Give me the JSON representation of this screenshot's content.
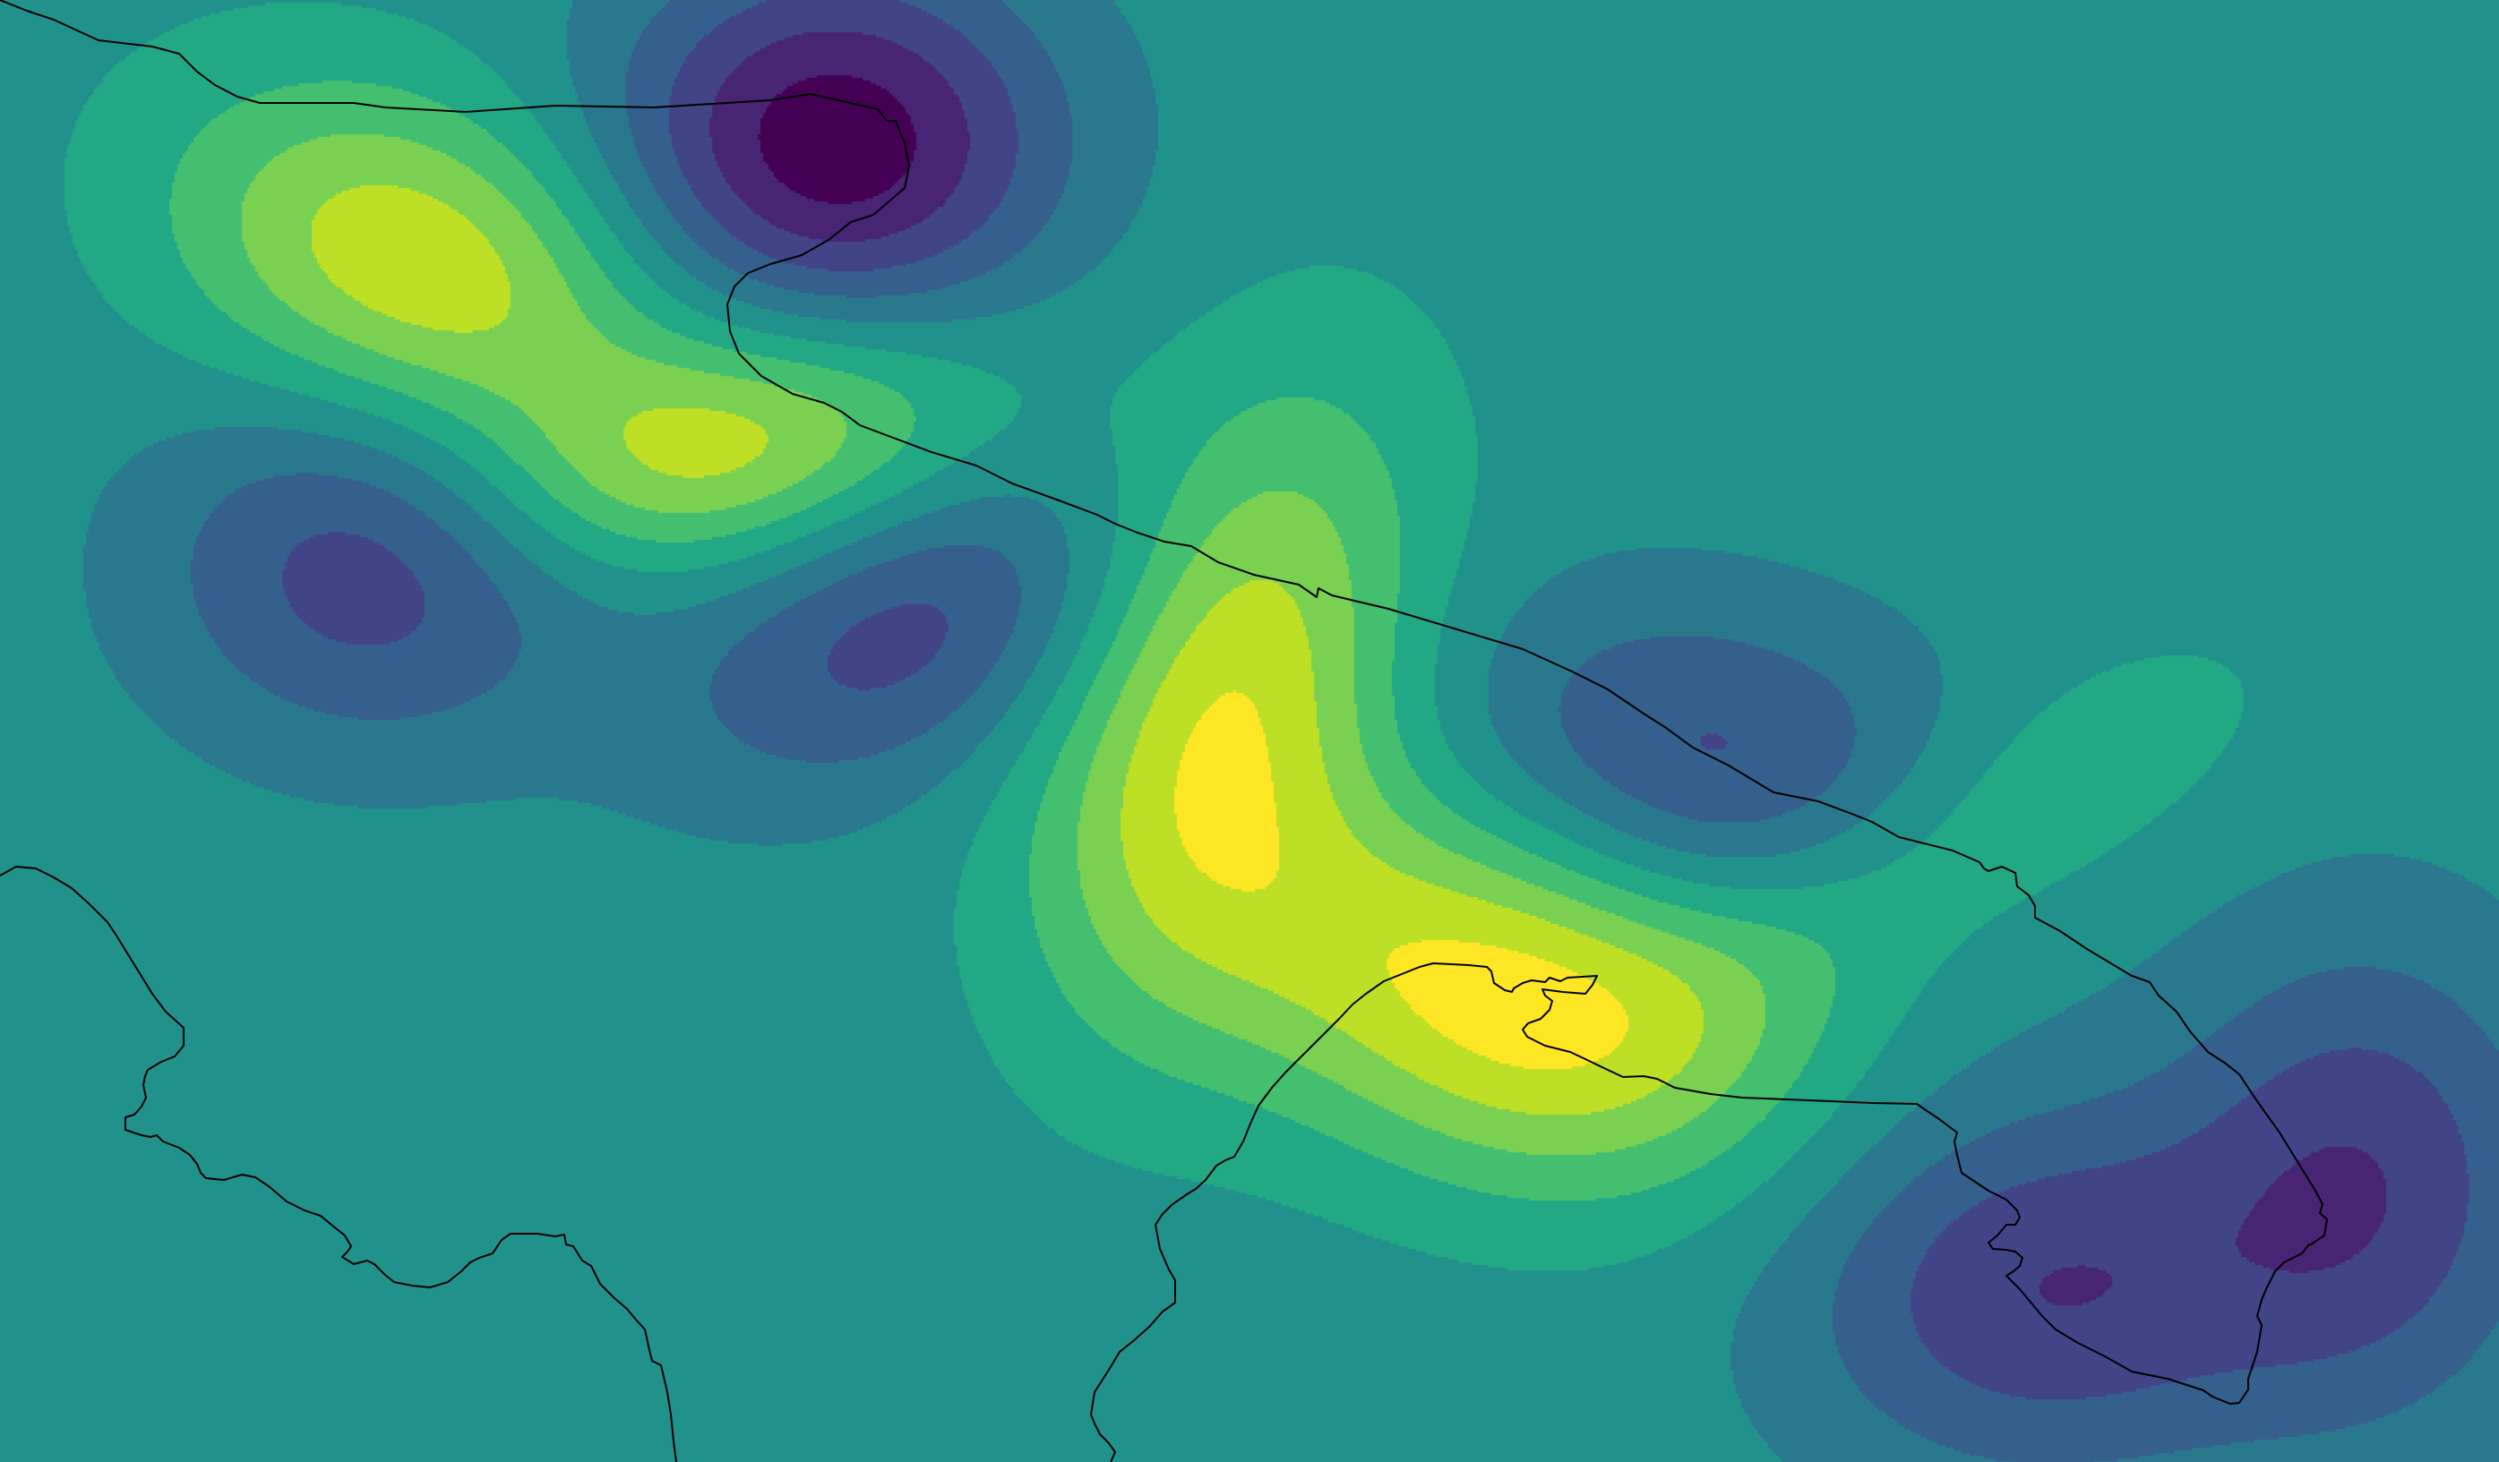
{
  "map": {
    "plot_type": "filled-contour",
    "colormap": "viridis",
    "colors": {
      "background": "#21918c",
      "coastline": "#000000"
    },
    "contour_levels": 12,
    "palette": [
      "#440154",
      "#482475",
      "#414487",
      "#355f8d",
      "#2a788e",
      "#21918c",
      "#22a884",
      "#44bf70",
      "#7ad151",
      "#bddf26",
      "#fde725"
    ],
    "features": [
      {
        "name": "low-ne-top"
      },
      {
        "name": "high-nw"
      },
      {
        "name": "high-nw-lobe"
      },
      {
        "name": "low-w"
      },
      {
        "name": "low-center-w"
      },
      {
        "name": "high-center"
      },
      {
        "name": "high-center-s"
      },
      {
        "name": "low-center-e"
      },
      {
        "name": "high-e-ridge"
      },
      {
        "name": "low-se"
      },
      {
        "name": "low-far-e"
      }
    ]
  }
}
